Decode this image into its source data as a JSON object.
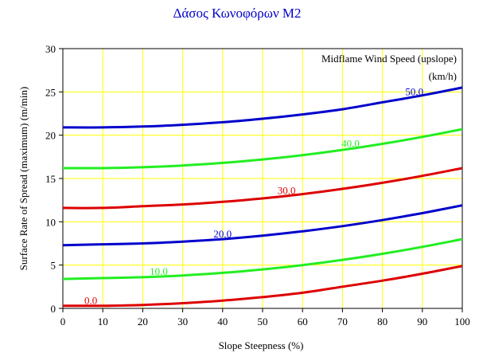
{
  "chart_data": {
    "type": "line",
    "title": "Δάσος Κωνοφόρων Μ2",
    "xlabel": "Slope Steepness (%)",
    "ylabel": "Surface Rate of Spread (maximum) (m/min)",
    "legend_title_line1": "Midflame Wind Speed (upslope)",
    "legend_title_line2": "(km/h)",
    "xlim": [
      0,
      100
    ],
    "ylim": [
      0,
      30
    ],
    "x_ticks": [
      0,
      10,
      20,
      30,
      40,
      50,
      60,
      70,
      80,
      90,
      100
    ],
    "y_ticks": [
      0,
      5,
      10,
      15,
      20,
      25,
      30
    ],
    "grid": true,
    "grid_color": "#ffff00",
    "x": [
      0,
      10,
      20,
      30,
      40,
      50,
      60,
      70,
      80,
      90,
      100
    ],
    "series": [
      {
        "name": "0.0",
        "color": "#dd0000",
        "label_x": 7,
        "values": [
          0.3,
          0.3,
          0.4,
          0.6,
          0.9,
          1.3,
          1.8,
          2.5,
          3.2,
          4.0,
          4.9
        ]
      },
      {
        "name": "10.0",
        "color": "#22ee22",
        "label_x": 24,
        "values": [
          3.4,
          3.5,
          3.6,
          3.8,
          4.1,
          4.5,
          5.0,
          5.6,
          6.3,
          7.1,
          8.0
        ]
      },
      {
        "name": "20.0",
        "color": "#0000cc",
        "label_x": 40,
        "values": [
          7.3,
          7.4,
          7.5,
          7.7,
          8.0,
          8.4,
          8.9,
          9.5,
          10.2,
          11.0,
          11.9
        ]
      },
      {
        "name": "30.0",
        "color": "#dd0000",
        "label_x": 56,
        "values": [
          11.6,
          11.6,
          11.8,
          12.0,
          12.3,
          12.7,
          13.2,
          13.8,
          14.5,
          15.3,
          16.2
        ]
      },
      {
        "name": "40.0",
        "color": "#22ee22",
        "label_x": 72,
        "values": [
          16.2,
          16.2,
          16.3,
          16.5,
          16.8,
          17.2,
          17.7,
          18.3,
          19.0,
          19.8,
          20.7
        ]
      },
      {
        "name": "50.0",
        "color": "#0000cc",
        "label_x": 88,
        "values": [
          20.9,
          20.9,
          21.0,
          21.2,
          21.5,
          21.9,
          22.4,
          23.0,
          23.8,
          24.6,
          25.5
        ]
      }
    ]
  }
}
